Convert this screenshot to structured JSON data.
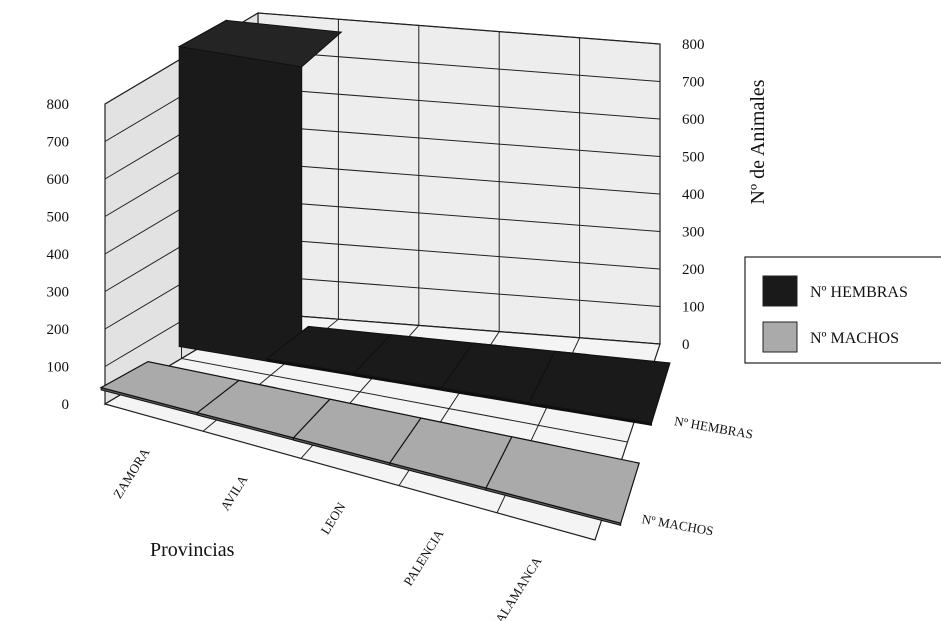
{
  "chart_data": {
    "type": "bar",
    "subtype": "3d-grouped",
    "categories": [
      "ZAMORA",
      "AVILA",
      "LEON",
      "PALENCIA",
      "SALAMANCA"
    ],
    "series": [
      {
        "name": "Nº HEMBRAS",
        "values": [
          800,
          0,
          0,
          0,
          0
        ],
        "color": "#1a1a1a"
      },
      {
        "name": "Nº MACHOS",
        "values": [
          0,
          0,
          0,
          0,
          0
        ],
        "color": "#aaaaaa"
      }
    ],
    "xlabel": "Provincias",
    "ylabel": "Nº de Animales",
    "ylim": [
      0,
      800
    ],
    "yticks": [
      0,
      100,
      200,
      300,
      400,
      500,
      600,
      700,
      800
    ],
    "grid": true,
    "legend": "right"
  }
}
